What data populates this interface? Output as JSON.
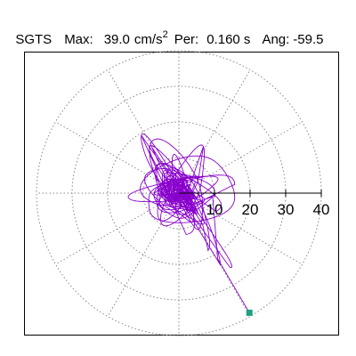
{
  "header": {
    "station": "SGTS",
    "max_label": "Max:",
    "max_value": "39.0",
    "max_unit": "cm/s",
    "max_unit_exp": "2",
    "per_label": "Per:",
    "per_value": "0.160 s",
    "ang_label": "Ang:",
    "ang_value": "-59.5"
  },
  "chart_data": {
    "type": "scatter",
    "description_free": true,
    "polar_grid": {
      "ring_radii": [
        10,
        20,
        30,
        40
      ],
      "spoke_angles_deg": [
        0,
        30,
        60,
        90,
        120,
        150,
        180,
        210,
        240,
        270,
        300,
        330
      ],
      "grid_style": "dotted"
    },
    "axis": {
      "ticks": [
        10,
        20,
        30,
        40
      ],
      "tick_labels": [
        "10",
        "20",
        "30",
        "40"
      ],
      "range": [
        0,
        40
      ]
    },
    "max_point": {
      "x": 19.8,
      "y": -33.6,
      "amplitude": 39.0,
      "angle_deg": -59.5
    },
    "colors": {
      "trace": "#8800cc",
      "marker": "#1fa080",
      "grid": "#888888",
      "axis": "#000000"
    }
  }
}
